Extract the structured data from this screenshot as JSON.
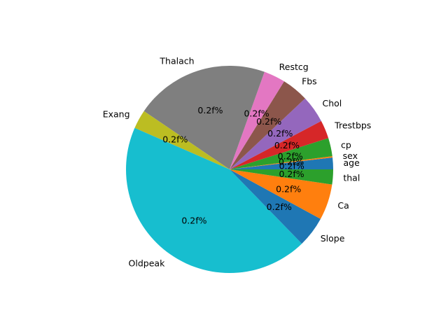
{
  "chart_data": {
    "type": "pie",
    "start_angle_deg": 0,
    "direction": "counterclockwise",
    "pct_label_text": "0.2f%",
    "slices": [
      {
        "label": "age",
        "value": 1.8,
        "color": "#1f77b4"
      },
      {
        "label": "sex",
        "value": 0.2,
        "color": "#ff7f0e"
      },
      {
        "label": "cp",
        "value": 2.8,
        "color": "#2ca02c"
      },
      {
        "label": "Trestbps",
        "value": 2.8,
        "color": "#d62728"
      },
      {
        "label": "Chol",
        "value": 4.2,
        "color": "#9467bd"
      },
      {
        "label": "Fbs",
        "value": 4.1,
        "color": "#8c564b"
      },
      {
        "label": "Restcg",
        "value": 3.3,
        "color": "#e377c2"
      },
      {
        "label": "Thalach",
        "value": 20.6,
        "color": "#7f7f7f"
      },
      {
        "label": "Exang",
        "value": 2.9,
        "color": "#bcbd22"
      },
      {
        "label": "Oldpeak",
        "value": 43.1,
        "color": "#17becf"
      },
      {
        "label": "Slope",
        "value": 4.7,
        "color": "#1f77b4"
      },
      {
        "label": "Ca",
        "value": 5.5,
        "color": "#ff7f0e"
      },
      {
        "label": "thal",
        "value": 2.3,
        "color": "#2ca02c"
      }
    ]
  }
}
